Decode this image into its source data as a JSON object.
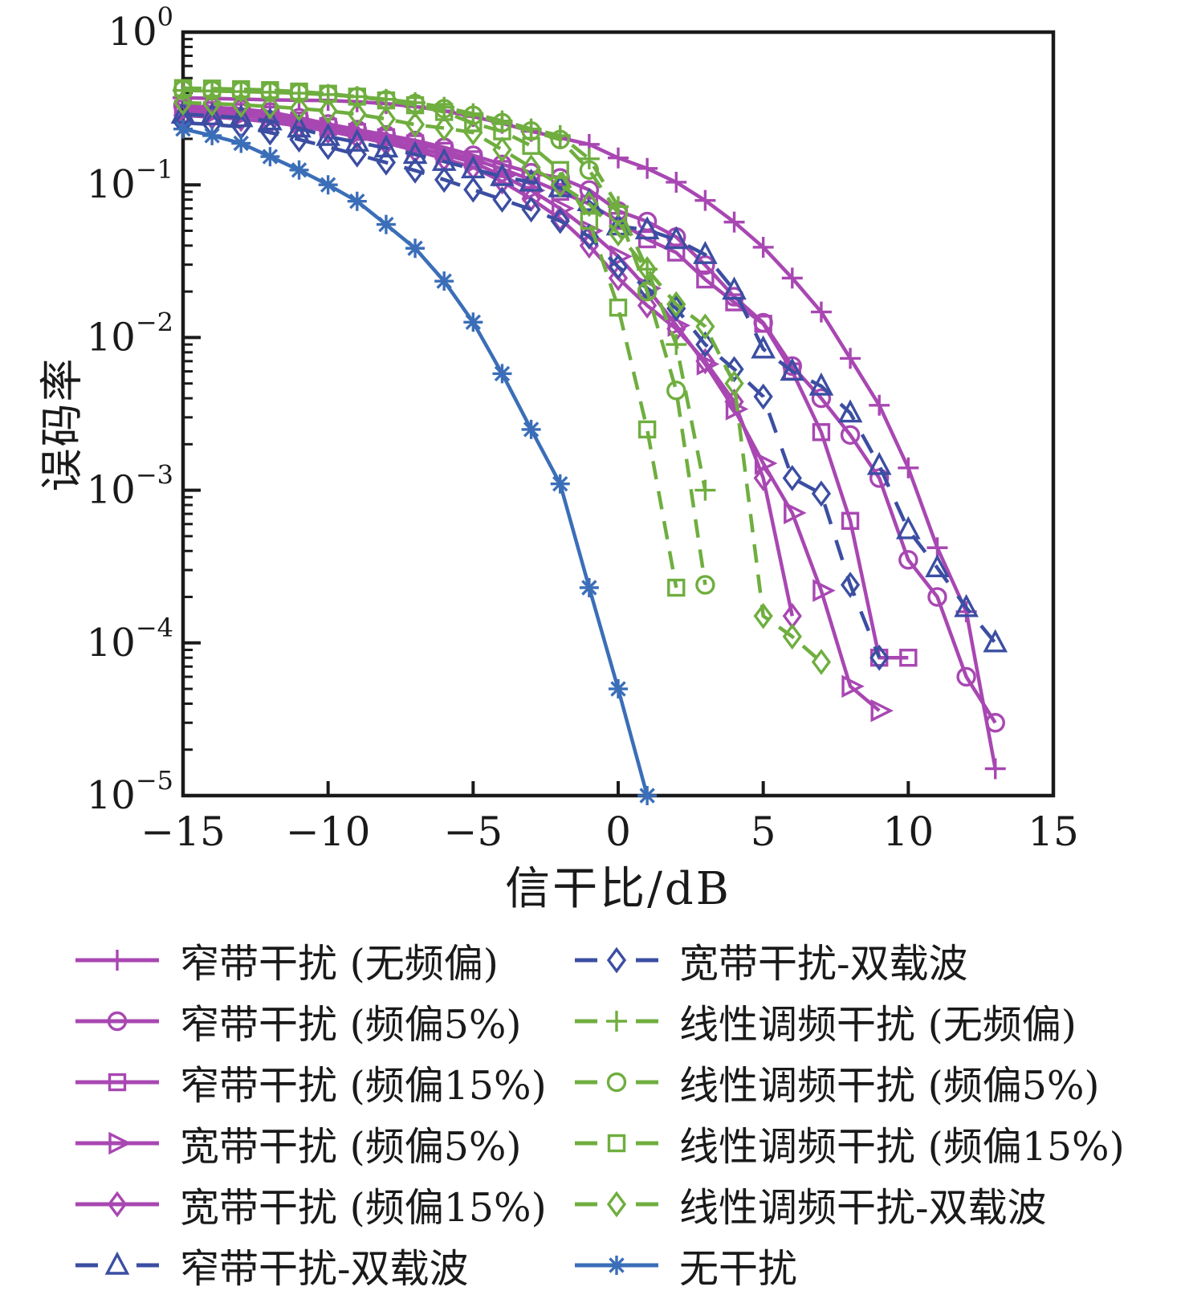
{
  "chart_data": {
    "type": "line",
    "title": "",
    "xlabel": "信干比/dB",
    "ylabel": "误码率",
    "x_axis": {
      "min": -15,
      "max": 15,
      "ticks": [
        -15,
        -10,
        -5,
        0,
        5,
        10,
        15
      ],
      "tick_labels": [
        "−15",
        "−10",
        "−5",
        "0",
        "5",
        "10",
        "15"
      ]
    },
    "y_axis": {
      "scale": "log",
      "min": 1e-05,
      "max": 1,
      "tick_exponents": [
        0,
        -1,
        -2,
        -3,
        -4,
        -5
      ],
      "tick_base": "10"
    },
    "grid": false,
    "legend_position": "below-two-columns",
    "colors": {
      "magenta": "#A847B2",
      "green": "#6FAE3F",
      "blue_dashed": "#3B4EA2",
      "blue_solid": "#3B6EB8",
      "axis": "#1a1a1a"
    },
    "series": [
      {
        "name": "nb-plus",
        "label": "窄带干扰 (无频偏)",
        "color": "#A847B2",
        "dash": "solid",
        "marker": "plus",
        "points": [
          [
            -15,
            0.372
          ],
          [
            -14,
            0.368
          ],
          [
            -13,
            0.364
          ],
          [
            -12,
            0.36
          ],
          [
            -11,
            0.358
          ],
          [
            -10,
            0.357
          ],
          [
            -9,
            0.35
          ],
          [
            -8,
            0.34
          ],
          [
            -7,
            0.325
          ],
          [
            -6,
            0.305
          ],
          [
            -5,
            0.28
          ],
          [
            -4,
            0.253
          ],
          [
            -3,
            0.224
          ],
          [
            -2,
            0.203
          ],
          [
            -1,
            0.184
          ],
          [
            0,
            0.15
          ],
          [
            1,
            0.128
          ],
          [
            2,
            0.104
          ],
          [
            3,
            0.079
          ],
          [
            4,
            0.057
          ],
          [
            5,
            0.039
          ],
          [
            6,
            0.0245
          ],
          [
            7,
            0.0147
          ],
          [
            8,
            0.0073
          ],
          [
            9,
            0.0036
          ],
          [
            10,
            0.0014
          ],
          [
            11,
            0.00042
          ],
          [
            12,
            0.00016
          ],
          [
            13,
            1.5e-05
          ]
        ]
      },
      {
        "name": "nb-circle",
        "label": "窄带干扰 (频偏5%)",
        "color": "#A847B2",
        "dash": "solid",
        "marker": "circle",
        "points": [
          [
            -15,
            0.33
          ],
          [
            -14,
            0.322
          ],
          [
            -13,
            0.313
          ],
          [
            -12,
            0.3
          ],
          [
            -11,
            0.275
          ],
          [
            -10,
            0.25
          ],
          [
            -9,
            0.23
          ],
          [
            -8,
            0.212
          ],
          [
            -7,
            0.195
          ],
          [
            -6,
            0.176
          ],
          [
            -5,
            0.156
          ],
          [
            -4,
            0.136
          ],
          [
            -3,
            0.12
          ],
          [
            -2,
            0.111
          ],
          [
            -1,
            0.0925
          ],
          [
            0,
            0.0675
          ],
          [
            1,
            0.0575
          ],
          [
            2,
            0.0455
          ],
          [
            3,
            0.0298
          ],
          [
            4,
            0.0185
          ],
          [
            5,
            0.0125
          ],
          [
            6,
            0.0065
          ],
          [
            7,
            0.004
          ],
          [
            8,
            0.0023
          ],
          [
            9,
            0.0012
          ],
          [
            10,
            0.00035
          ],
          [
            11,
            0.0002
          ],
          [
            12,
            6e-05
          ],
          [
            13,
            3e-05
          ]
        ]
      },
      {
        "name": "nb-square",
        "label": "窄带干扰 (频偏15%)",
        "color": "#A847B2",
        "dash": "solid",
        "marker": "square",
        "points": [
          [
            -15,
            0.315
          ],
          [
            -14,
            0.308
          ],
          [
            -13,
            0.3
          ],
          [
            -12,
            0.288
          ],
          [
            -11,
            0.264
          ],
          [
            -10,
            0.24
          ],
          [
            -9,
            0.222
          ],
          [
            -8,
            0.205
          ],
          [
            -7,
            0.187
          ],
          [
            -6,
            0.167
          ],
          [
            -5,
            0.147
          ],
          [
            -4,
            0.127
          ],
          [
            -3,
            0.108
          ],
          [
            -2,
            0.09
          ],
          [
            -1,
            0.075
          ],
          [
            0,
            0.058
          ],
          [
            1,
            0.044
          ],
          [
            2,
            0.036
          ],
          [
            3,
            0.024
          ],
          [
            4,
            0.017
          ],
          [
            5,
            0.0123
          ],
          [
            6,
            0.006
          ],
          [
            7,
            0.0024
          ],
          [
            8,
            0.00063
          ],
          [
            9,
            8e-05
          ],
          [
            10,
            8e-05
          ]
        ]
      },
      {
        "name": "wb-triangle",
        "label": "宽带干扰 (频偏5%)",
        "color": "#A847B2",
        "dash": "solid",
        "marker": "triangle-right",
        "points": [
          [
            -15,
            0.3
          ],
          [
            -14,
            0.293
          ],
          [
            -13,
            0.285
          ],
          [
            -12,
            0.273
          ],
          [
            -11,
            0.254
          ],
          [
            -10,
            0.235
          ],
          [
            -9,
            0.215
          ],
          [
            -8,
            0.196
          ],
          [
            -7,
            0.176
          ],
          [
            -6,
            0.158
          ],
          [
            -5,
            0.14
          ],
          [
            -4,
            0.115
          ],
          [
            -3,
            0.092
          ],
          [
            -2,
            0.07
          ],
          [
            -1,
            0.05
          ],
          [
            0,
            0.034
          ],
          [
            1,
            0.021
          ],
          [
            2,
            0.012
          ],
          [
            3,
            0.0067
          ],
          [
            4,
            0.0034
          ],
          [
            5,
            0.0015
          ],
          [
            6,
            0.00071
          ],
          [
            7,
            0.00022
          ],
          [
            8,
            5.2e-05
          ],
          [
            9,
            3.6e-05
          ]
        ]
      },
      {
        "name": "wb-diamond",
        "label": "宽带干扰 (频偏15%)",
        "color": "#A847B2",
        "dash": "solid",
        "marker": "diamond",
        "points": [
          [
            -15,
            0.285
          ],
          [
            -14,
            0.278
          ],
          [
            -13,
            0.27
          ],
          [
            -12,
            0.258
          ],
          [
            -11,
            0.242
          ],
          [
            -10,
            0.225
          ],
          [
            -9,
            0.206
          ],
          [
            -8,
            0.188
          ],
          [
            -7,
            0.168
          ],
          [
            -6,
            0.148
          ],
          [
            -5,
            0.13
          ],
          [
            -4,
            0.105
          ],
          [
            -3,
            0.081
          ],
          [
            -2,
            0.06
          ],
          [
            -1,
            0.04
          ],
          [
            0,
            0.0245
          ],
          [
            1,
            0.0162
          ],
          [
            2,
            0.0114
          ],
          [
            3,
            0.007
          ],
          [
            4,
            0.0038
          ],
          [
            5,
            0.0012
          ],
          [
            6,
            0.00015
          ]
        ]
      },
      {
        "name": "nbdc-triangle",
        "label": "窄带干扰-双载波",
        "color": "#3B4EA2",
        "dash": "dashed",
        "marker": "triangle-up",
        "points": [
          [
            -15,
            0.29
          ],
          [
            -14,
            0.283
          ],
          [
            -13,
            0.275
          ],
          [
            -12,
            0.262
          ],
          [
            -11,
            0.235
          ],
          [
            -10,
            0.207
          ],
          [
            -9,
            0.19
          ],
          [
            -8,
            0.174
          ],
          [
            -7,
            0.158
          ],
          [
            -6,
            0.142
          ],
          [
            -5,
            0.127
          ],
          [
            -4,
            0.113
          ],
          [
            -3,
            0.104
          ],
          [
            -2,
            0.0955
          ],
          [
            -1,
            0.0775
          ],
          [
            0,
            0.0537
          ],
          [
            1,
            0.0506
          ],
          [
            2,
            0.0437
          ],
          [
            3,
            0.0349
          ],
          [
            4,
            0.0204
          ],
          [
            5,
            0.0084
          ],
          [
            6,
            0.006
          ],
          [
            7,
            0.0048
          ],
          [
            8,
            0.0032
          ],
          [
            9,
            0.00145
          ],
          [
            10,
            0.00055
          ],
          [
            11,
            0.00031
          ],
          [
            12,
            0.00017
          ],
          [
            13,
            0.0001
          ]
        ]
      },
      {
        "name": "wbdc-diamond",
        "label": "宽带干扰-双载波",
        "color": "#3B4EA2",
        "dash": "dashed",
        "marker": "diamond",
        "points": [
          [
            -15,
            0.255
          ],
          [
            -14,
            0.248
          ],
          [
            -13,
            0.24
          ],
          [
            -12,
            0.22
          ],
          [
            -11,
            0.198
          ],
          [
            -10,
            0.177
          ],
          [
            -9,
            0.158
          ],
          [
            -8,
            0.14
          ],
          [
            -7,
            0.124
          ],
          [
            -6,
            0.108
          ],
          [
            -5,
            0.093
          ],
          [
            -4,
            0.08
          ],
          [
            -3,
            0.069
          ],
          [
            -2,
            0.058
          ],
          [
            -1,
            0.0458
          ],
          [
            0,
            0.029
          ],
          [
            1,
            0.021
          ],
          [
            2,
            0.0155
          ],
          [
            3,
            0.009
          ],
          [
            4,
            0.0062
          ],
          [
            5,
            0.0041
          ],
          [
            6,
            0.0012
          ],
          [
            7,
            0.00095
          ],
          [
            8,
            0.00024
          ],
          [
            9,
            8e-05
          ]
        ]
      },
      {
        "name": "lfm-plus",
        "label": "线性调频干扰 (无频偏)",
        "color": "#6FAE3F",
        "dash": "dashed",
        "marker": "plus",
        "points": [
          [
            -15,
            0.415
          ],
          [
            -14,
            0.412
          ],
          [
            -13,
            0.408
          ],
          [
            -12,
            0.404
          ],
          [
            -11,
            0.398
          ],
          [
            -10,
            0.39
          ],
          [
            -9,
            0.378
          ],
          [
            -8,
            0.363
          ],
          [
            -7,
            0.345
          ],
          [
            -6,
            0.322
          ],
          [
            -5,
            0.292
          ],
          [
            -4,
            0.262
          ],
          [
            -3,
            0.232
          ],
          [
            -2,
            0.21
          ],
          [
            -1,
            0.148
          ],
          [
            0,
            0.072
          ],
          [
            1,
            0.028
          ],
          [
            2,
            0.009
          ],
          [
            3,
            0.001
          ]
        ]
      },
      {
        "name": "lfm-circle",
        "label": "线性调频干扰 (频偏5%)",
        "color": "#6FAE3F",
        "dash": "dashed",
        "marker": "circle",
        "points": [
          [
            -15,
            0.42
          ],
          [
            -14,
            0.417
          ],
          [
            -13,
            0.413
          ],
          [
            -12,
            0.408
          ],
          [
            -11,
            0.4
          ],
          [
            -10,
            0.39
          ],
          [
            -9,
            0.377
          ],
          [
            -8,
            0.36
          ],
          [
            -7,
            0.34
          ],
          [
            -6,
            0.315
          ],
          [
            -5,
            0.285
          ],
          [
            -4,
            0.255
          ],
          [
            -3,
            0.225
          ],
          [
            -2,
            0.198
          ],
          [
            -1,
            0.125
          ],
          [
            0,
            0.065
          ],
          [
            1,
            0.02
          ],
          [
            2,
            0.0045
          ],
          [
            3,
            0.00024
          ]
        ]
      },
      {
        "name": "lfm-square",
        "label": "线性调频干扰 (频偏15%)",
        "color": "#6FAE3F",
        "dash": "dashed",
        "marker": "square",
        "points": [
          [
            -15,
            0.43
          ],
          [
            -14,
            0.427
          ],
          [
            -13,
            0.423
          ],
          [
            -12,
            0.417
          ],
          [
            -11,
            0.408
          ],
          [
            -10,
            0.395
          ],
          [
            -9,
            0.378
          ],
          [
            -8,
            0.357
          ],
          [
            -7,
            0.332
          ],
          [
            -6,
            0.3
          ],
          [
            -5,
            0.253
          ],
          [
            -4,
            0.224
          ],
          [
            -3,
            0.18
          ],
          [
            -2,
            0.125
          ],
          [
            -1,
            0.058
          ],
          [
            0,
            0.0157
          ],
          [
            1,
            0.0025
          ],
          [
            2,
            0.00023
          ]
        ]
      },
      {
        "name": "lfmdc-diamond",
        "label": "线性调频干扰-双载波",
        "color": "#6FAE3F",
        "dash": "dashed",
        "marker": "diamond",
        "points": [
          [
            -15,
            0.345
          ],
          [
            -14,
            0.34
          ],
          [
            -13,
            0.334
          ],
          [
            -12,
            0.326
          ],
          [
            -11,
            0.316
          ],
          [
            -10,
            0.305
          ],
          [
            -9,
            0.29
          ],
          [
            -8,
            0.27
          ],
          [
            -7,
            0.248
          ],
          [
            -6,
            0.235
          ],
          [
            -5,
            0.22
          ],
          [
            -4,
            0.17
          ],
          [
            -3,
            0.13
          ],
          [
            -2,
            0.1
          ],
          [
            -1,
            0.075
          ],
          [
            0,
            0.048
          ],
          [
            1,
            0.028
          ],
          [
            2,
            0.0165
          ],
          [
            3,
            0.0118
          ],
          [
            4,
            0.005
          ],
          [
            5,
            0.00015
          ],
          [
            6,
            0.00011
          ],
          [
            7,
            7.5e-05
          ]
        ]
      },
      {
        "name": "no-interference",
        "label": "无干扰",
        "color": "#3B6EB8",
        "dash": "solid",
        "marker": "asterisk",
        "points": [
          [
            -15,
            0.232
          ],
          [
            -14,
            0.21
          ],
          [
            -13,
            0.187
          ],
          [
            -12,
            0.153
          ],
          [
            -11,
            0.125
          ],
          [
            -10,
            0.1
          ],
          [
            -9,
            0.078
          ],
          [
            -8,
            0.055
          ],
          [
            -7,
            0.0384
          ],
          [
            -6,
            0.0234
          ],
          [
            -5,
            0.0126
          ],
          [
            -4,
            0.0058
          ],
          [
            -3,
            0.0025
          ],
          [
            -2,
            0.0011
          ],
          [
            -1,
            0.00023
          ],
          [
            0,
            5e-05
          ],
          [
            1,
            1e-05
          ]
        ]
      }
    ],
    "legend_columns": [
      [
        0,
        1,
        2,
        3,
        4,
        5
      ],
      [
        6,
        7,
        8,
        9,
        10,
        11
      ]
    ]
  }
}
